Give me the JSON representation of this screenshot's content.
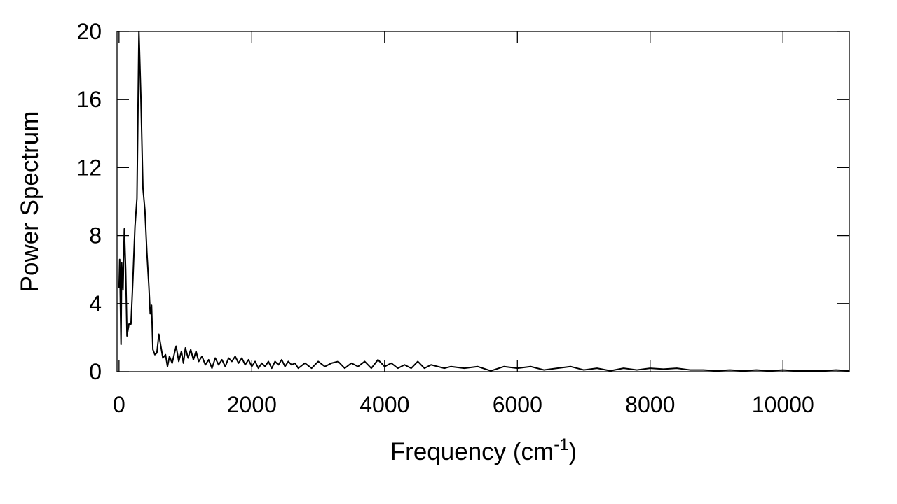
{
  "chart_data": {
    "type": "line",
    "xlabel": {
      "text": "Frequency (cm",
      "sup": "-1",
      "tail": ")"
    },
    "ylabel": "Power Spectrum",
    "color": "#000000",
    "x": [
      0,
      10,
      30,
      40,
      60,
      80,
      100,
      120,
      150,
      180,
      210,
      240,
      270,
      300,
      330,
      360,
      390,
      420,
      450,
      470,
      490,
      510,
      540,
      570,
      600,
      630,
      660,
      700,
      730,
      760,
      800,
      830,
      860,
      900,
      940,
      970,
      1000,
      1040,
      1080,
      1120,
      1160,
      1200,
      1250,
      1300,
      1350,
      1400,
      1450,
      1500,
      1550,
      1600,
      1650,
      1700,
      1750,
      1800,
      1850,
      1900,
      1950,
      2000,
      2050,
      2100,
      2150,
      2200,
      2250,
      2300,
      2350,
      2400,
      2450,
      2500,
      2550,
      2600,
      2650,
      2700,
      2800,
      2900,
      3000,
      3100,
      3200,
      3300,
      3400,
      3500,
      3600,
      3700,
      3800,
      3900,
      4000,
      4100,
      4200,
      4300,
      4400,
      4500,
      4600,
      4700,
      4800,
      4900,
      5000,
      5200,
      5400,
      5600,
      5800,
      6000,
      6200,
      6400,
      6600,
      6800,
      7000,
      7200,
      7400,
      7600,
      7800,
      8000,
      8200,
      8400,
      8600,
      8800,
      9000,
      9200,
      9400,
      9600,
      9800,
      10000,
      10200,
      10400,
      10600,
      10800,
      11000
    ],
    "values": [
      4.9,
      6.6,
      1.6,
      6.4,
      4.8,
      8.4,
      6,
      2.1,
      2.8,
      2.8,
      5.5,
      8.5,
      10.2,
      20,
      16,
      10.8,
      9.5,
      7,
      5,
      3.4,
      3.9,
      1.3,
      1.0,
      1.1,
      2.2,
      1.5,
      0.8,
      1.0,
      0.3,
      0.9,
      0.5,
      1.0,
      1.5,
      0.6,
      1.2,
      0.5,
      1.4,
      0.8,
      1.3,
      0.7,
      1.2,
      0.6,
      0.9,
      0.4,
      0.7,
      0.2,
      0.8,
      0.4,
      0.7,
      0.3,
      0.8,
      0.6,
      0.9,
      0.5,
      0.8,
      0.4,
      0.7,
      0.3,
      0.6,
      0.2,
      0.5,
      0.3,
      0.6,
      0.2,
      0.6,
      0.4,
      0.7,
      0.3,
      0.6,
      0.4,
      0.5,
      0.2,
      0.5,
      0.2,
      0.6,
      0.3,
      0.5,
      0.6,
      0.2,
      0.5,
      0.3,
      0.6,
      0.2,
      0.7,
      0.3,
      0.5,
      0.2,
      0.4,
      0.2,
      0.6,
      0.2,
      0.4,
      0.3,
      0.2,
      0.3,
      0.2,
      0.3,
      0.05,
      0.3,
      0.2,
      0.3,
      0.1,
      0.2,
      0.3,
      0.1,
      0.2,
      0.05,
      0.2,
      0.1,
      0.2,
      0.15,
      0.2,
      0.1,
      0.1,
      0.05,
      0.1,
      0.05,
      0.1,
      0.05,
      0.1,
      0.05,
      0.05,
      0.05,
      0.1,
      0.05
    ],
    "xlim": [
      -30,
      11000
    ],
    "xticks": [
      0,
      2000,
      4000,
      6000,
      8000,
      10000
    ],
    "ylim": [
      0,
      20
    ],
    "yticks": [
      0,
      4,
      8,
      12,
      16,
      20
    ]
  }
}
